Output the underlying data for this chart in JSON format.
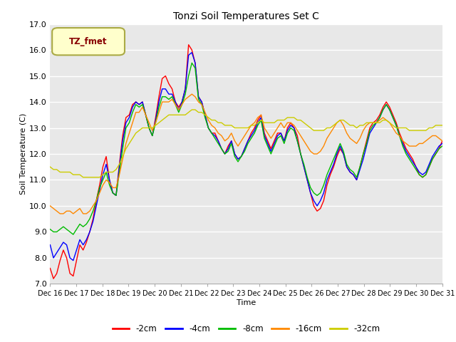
{
  "title": "Tonzi Soil Temperatures Set C",
  "xlabel": "Time",
  "ylabel": "Soil Temperature (C)",
  "ylim": [
    7.0,
    17.0
  ],
  "yticks": [
    7.0,
    8.0,
    9.0,
    10.0,
    11.0,
    12.0,
    13.0,
    14.0,
    15.0,
    16.0,
    17.0
  ],
  "xtick_labels": [
    "Dec 16",
    "Dec 17",
    "Dec 18",
    "Dec 19",
    "Dec 20",
    "Dec 21",
    "Dec 22",
    "Dec 23",
    "Dec 24",
    "Dec 25",
    "Dec 26",
    "Dec 27",
    "Dec 28",
    "Dec 29",
    "Dec 30",
    "Dec 31"
  ],
  "colors": {
    "-2cm": "#ff0000",
    "-4cm": "#0000ff",
    "-8cm": "#00bb00",
    "-16cm": "#ff8800",
    "-32cm": "#cccc00"
  },
  "legend_label": "TZ_fmet",
  "legend_box_bg": "#ffffcc",
  "legend_box_edge": "#aaaa44",
  "fig_bg": "#ffffff",
  "plot_bg": "#e8e8e8",
  "grid_color": "#ffffff",
  "series": {
    "-2cm": [
      7.6,
      7.2,
      7.4,
      7.9,
      8.3,
      8.0,
      7.4,
      7.3,
      7.9,
      8.5,
      8.3,
      8.6,
      9.0,
      9.5,
      10.2,
      10.8,
      11.5,
      11.9,
      11.0,
      10.5,
      10.4,
      11.6,
      12.7,
      13.4,
      13.5,
      13.9,
      14.0,
      13.9,
      14.0,
      13.5,
      13.0,
      12.7,
      13.4,
      14.2,
      14.9,
      15.0,
      14.7,
      14.5,
      14.0,
      13.8,
      14.0,
      14.5,
      16.2,
      16.0,
      15.5,
      14.2,
      14.0,
      13.5,
      13.0,
      12.8,
      12.8,
      12.5,
      12.2,
      12.0,
      12.3,
      12.5,
      12.0,
      11.8,
      11.9,
      12.2,
      12.5,
      12.8,
      13.0,
      13.3,
      13.5,
      12.8,
      12.5,
      12.2,
      12.5,
      12.8,
      12.8,
      12.5,
      13.0,
      13.2,
      13.0,
      12.7,
      12.0,
      11.5,
      11.0,
      10.5,
      10.0,
      9.8,
      9.9,
      10.2,
      10.8,
      11.2,
      11.5,
      11.9,
      12.2,
      12.0,
      11.5,
      11.3,
      11.2,
      11.0,
      11.5,
      12.0,
      12.5,
      13.0,
      13.2,
      13.3,
      13.5,
      13.8,
      14.0,
      13.8,
      13.5,
      13.2,
      12.8,
      12.5,
      12.2,
      12.0,
      11.8,
      11.5,
      11.2,
      11.1,
      11.2,
      11.5,
      11.8,
      12.0,
      12.2,
      12.5
    ],
    "-4cm": [
      8.5,
      8.0,
      8.2,
      8.4,
      8.6,
      8.5,
      8.0,
      7.9,
      8.3,
      8.7,
      8.5,
      8.7,
      9.0,
      9.4,
      10.0,
      10.6,
      11.2,
      11.6,
      11.0,
      10.5,
      10.4,
      11.5,
      12.5,
      13.2,
      13.4,
      13.8,
      14.0,
      13.9,
      14.0,
      13.5,
      13.0,
      12.7,
      13.3,
      14.0,
      14.5,
      14.5,
      14.3,
      14.3,
      14.0,
      13.7,
      14.0,
      14.5,
      15.8,
      15.9,
      15.5,
      14.2,
      14.0,
      13.5,
      13.0,
      12.8,
      12.7,
      12.5,
      12.2,
      12.0,
      12.2,
      12.5,
      12.0,
      11.8,
      11.9,
      12.2,
      12.5,
      12.7,
      12.9,
      13.2,
      13.4,
      12.7,
      12.4,
      12.1,
      12.4,
      12.7,
      12.8,
      12.5,
      12.9,
      13.1,
      13.0,
      12.5,
      12.0,
      11.5,
      11.0,
      10.5,
      10.2,
      10.0,
      10.2,
      10.5,
      11.0,
      11.3,
      11.6,
      12.0,
      12.3,
      12.0,
      11.5,
      11.3,
      11.2,
      11.0,
      11.4,
      11.8,
      12.3,
      12.8,
      13.0,
      13.2,
      13.4,
      13.7,
      13.9,
      13.7,
      13.4,
      13.1,
      12.7,
      12.4,
      12.1,
      11.9,
      11.7,
      11.5,
      11.3,
      11.2,
      11.3,
      11.6,
      11.9,
      12.1,
      12.3,
      12.4
    ],
    "-8cm": [
      9.1,
      9.0,
      9.0,
      9.1,
      9.2,
      9.1,
      9.0,
      8.9,
      9.1,
      9.3,
      9.2,
      9.3,
      9.5,
      9.8,
      10.2,
      10.7,
      11.0,
      11.3,
      10.8,
      10.5,
      10.4,
      11.3,
      12.2,
      13.0,
      13.2,
      13.6,
      13.9,
      13.8,
      13.9,
      13.5,
      13.0,
      12.7,
      13.2,
      13.8,
      14.2,
      14.2,
      14.1,
      14.2,
      13.9,
      13.6,
      13.9,
      14.3,
      15.0,
      15.5,
      15.3,
      14.1,
      13.9,
      13.4,
      13.0,
      12.8,
      12.6,
      12.4,
      12.2,
      12.0,
      12.1,
      12.4,
      11.9,
      11.7,
      11.9,
      12.1,
      12.4,
      12.6,
      12.8,
      13.1,
      13.3,
      12.6,
      12.3,
      12.0,
      12.3,
      12.6,
      12.7,
      12.4,
      12.8,
      13.0,
      12.9,
      12.5,
      12.0,
      11.6,
      11.1,
      10.7,
      10.5,
      10.4,
      10.5,
      10.8,
      11.2,
      11.5,
      11.8,
      12.1,
      12.4,
      12.1,
      11.6,
      11.4,
      11.3,
      11.1,
      11.5,
      12.0,
      12.4,
      12.9,
      13.1,
      13.2,
      13.4,
      13.7,
      13.9,
      13.7,
      13.4,
      13.1,
      12.7,
      12.3,
      12.0,
      11.8,
      11.6,
      11.4,
      11.2,
      11.1,
      11.2,
      11.5,
      11.8,
      12.0,
      12.2,
      12.3
    ],
    "-16cm": [
      10.0,
      9.9,
      9.8,
      9.7,
      9.7,
      9.8,
      9.8,
      9.7,
      9.8,
      9.9,
      9.7,
      9.7,
      9.8,
      10.0,
      10.2,
      10.5,
      10.8,
      11.0,
      10.9,
      10.7,
      10.7,
      11.2,
      11.8,
      12.4,
      12.8,
      13.2,
      13.6,
      13.6,
      13.8,
      13.5,
      13.2,
      12.9,
      13.2,
      13.6,
      14.0,
      14.0,
      14.0,
      14.1,
      13.9,
      13.7,
      13.9,
      14.1,
      14.2,
      14.3,
      14.2,
      14.0,
      13.9,
      13.6,
      13.3,
      13.1,
      13.0,
      12.8,
      12.7,
      12.5,
      12.6,
      12.8,
      12.5,
      12.3,
      12.5,
      12.7,
      12.9,
      13.1,
      13.2,
      13.4,
      13.5,
      13.0,
      12.8,
      12.6,
      12.8,
      13.0,
      13.2,
      13.0,
      13.2,
      13.2,
      13.1,
      12.9,
      12.7,
      12.5,
      12.3,
      12.1,
      12.0,
      12.0,
      12.1,
      12.3,
      12.6,
      12.8,
      13.0,
      13.2,
      13.3,
      13.1,
      12.8,
      12.6,
      12.5,
      12.4,
      12.6,
      12.9,
      13.1,
      13.2,
      13.2,
      13.2,
      13.3,
      13.4,
      13.3,
      13.2,
      13.0,
      12.8,
      12.7,
      12.5,
      12.4,
      12.3,
      12.3,
      12.3,
      12.4,
      12.4,
      12.5,
      12.6,
      12.7,
      12.7,
      12.6,
      12.5
    ],
    "-32cm": [
      11.5,
      11.4,
      11.4,
      11.3,
      11.3,
      11.3,
      11.3,
      11.2,
      11.2,
      11.2,
      11.1,
      11.1,
      11.1,
      11.1,
      11.1,
      11.1,
      11.2,
      11.3,
      11.3,
      11.3,
      11.4,
      11.6,
      11.9,
      12.2,
      12.4,
      12.6,
      12.8,
      12.9,
      13.0,
      13.0,
      13.0,
      13.0,
      13.1,
      13.2,
      13.3,
      13.4,
      13.5,
      13.5,
      13.5,
      13.5,
      13.5,
      13.5,
      13.6,
      13.7,
      13.7,
      13.6,
      13.6,
      13.5,
      13.4,
      13.3,
      13.3,
      13.2,
      13.2,
      13.1,
      13.1,
      13.1,
      13.0,
      13.0,
      13.0,
      13.0,
      13.0,
      13.1,
      13.1,
      13.2,
      13.3,
      13.2,
      13.2,
      13.2,
      13.2,
      13.3,
      13.3,
      13.3,
      13.4,
      13.4,
      13.4,
      13.3,
      13.3,
      13.2,
      13.1,
      13.0,
      12.9,
      12.9,
      12.9,
      12.9,
      13.0,
      13.0,
      13.1,
      13.2,
      13.3,
      13.3,
      13.2,
      13.1,
      13.1,
      13.0,
      13.1,
      13.1,
      13.2,
      13.2,
      13.2,
      13.2,
      13.2,
      13.3,
      13.3,
      13.2,
      13.1,
      13.0,
      13.0,
      13.0,
      13.0,
      12.9,
      12.9,
      12.9,
      12.9,
      12.9,
      12.9,
      13.0,
      13.0,
      13.1,
      13.1,
      13.1
    ]
  }
}
